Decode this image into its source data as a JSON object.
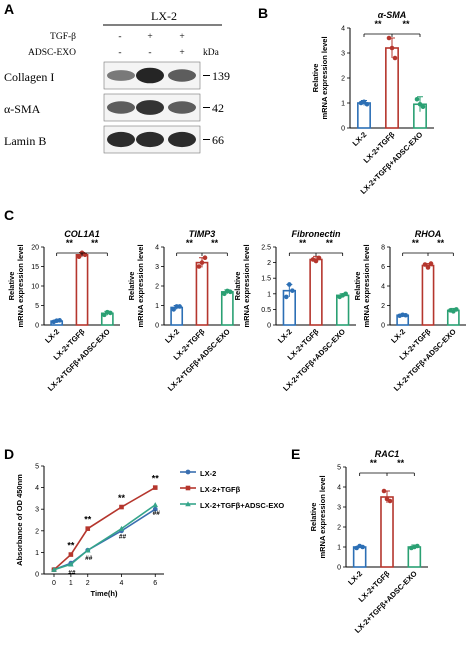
{
  "panel_labels": {
    "a": "A",
    "b": "B",
    "c": "C",
    "d": "D",
    "e": "E"
  },
  "colors": {
    "lx2": "#2c6fb5",
    "tgf": "#b5362d",
    "exo": "#2aa073",
    "d_lx2": "#3a6fb0",
    "d_tgf": "#b5362d",
    "d_exo": "#35a58a"
  },
  "western": {
    "header": "LX-2",
    "rows": [
      {
        "label": "TGF-β",
        "marks": [
          "-",
          "+",
          "+"
        ]
      },
      {
        "label": "ADSC-EXO",
        "marks": [
          "-",
          "-",
          "+"
        ]
      }
    ],
    "unit": "kDa",
    "bands": [
      {
        "name": "Collagen I",
        "kda": "139",
        "intensity": [
          0.35,
          0.95,
          0.55
        ]
      },
      {
        "name": "α-SMA",
        "kda": "42",
        "intensity": [
          0.55,
          0.85,
          0.55
        ]
      },
      {
        "name": "Lamin B",
        "kda": "66",
        "intensity": [
          0.9,
          0.9,
          0.9
        ]
      }
    ]
  },
  "y_axis_label": [
    "Relative",
    "mRNA expression level"
  ],
  "categories": [
    "LX-2",
    "LX-2+TGFβ",
    "LX-2+TGFβ+ADSC-EXO"
  ],
  "significance": "**",
  "chart_data": [
    {
      "type": "bar",
      "panel": "B",
      "title": "α-SMA",
      "categories": [
        "LX-2",
        "LX-2+TGFβ",
        "LX-2+TGFβ+ADSC-EXO"
      ],
      "values": [
        1.0,
        3.2,
        0.95
      ],
      "errors": [
        0.1,
        0.4,
        0.3
      ],
      "points": [
        [
          1.0,
          1.05,
          0.95
        ],
        [
          3.6,
          3.2,
          2.8
        ],
        [
          1.15,
          0.95,
          0.85
        ]
      ],
      "ylim": [
        0,
        4
      ],
      "ticks": [
        0,
        1,
        2,
        3,
        4
      ],
      "ylabel": "Relative mRNA expression level"
    },
    {
      "type": "bar",
      "panel": "C",
      "title": "COL1A1",
      "categories": [
        "LX-2",
        "LX-2+TGFβ",
        "LX-2+TGFβ+ADSC-EXO"
      ],
      "values": [
        1.0,
        18.0,
        3.0
      ],
      "errors": [
        0.3,
        0.6,
        0.5
      ],
      "points": [
        [
          0.8,
          1.1,
          1.2
        ],
        [
          17.5,
          18.5,
          18.0
        ],
        [
          2.6,
          3.3,
          3.1
        ]
      ],
      "ylim": [
        0,
        20
      ],
      "ticks": [
        0,
        5,
        10,
        15,
        20
      ],
      "ylabel": "Relative mRNA expression level"
    },
    {
      "type": "bar",
      "panel": "C",
      "title": "TIMP3",
      "categories": [
        "LX-2",
        "LX-2+TGFβ",
        "LX-2+TGFβ+ADSC-EXO"
      ],
      "values": [
        0.9,
        3.2,
        1.7
      ],
      "errors": [
        0.1,
        0.25,
        0.1
      ],
      "points": [
        [
          0.8,
          0.95,
          0.95
        ],
        [
          3.0,
          3.2,
          3.45
        ],
        [
          1.6,
          1.75,
          1.7
        ]
      ],
      "ylim": [
        0,
        4
      ],
      "ticks": [
        0,
        1,
        2,
        3,
        4
      ],
      "ylabel": "Relative mRNA expression level"
    },
    {
      "type": "bar",
      "panel": "C",
      "title": "Fibronectin",
      "categories": [
        "LX-2",
        "LX-2+TGFβ",
        "LX-2+TGFβ+ADSC-EXO"
      ],
      "values": [
        1.1,
        2.1,
        0.95
      ],
      "errors": [
        0.2,
        0.1,
        0.05
      ],
      "points": [
        [
          0.9,
          1.3,
          1.1
        ],
        [
          2.1,
          2.05,
          2.15
        ],
        [
          0.9,
          0.95,
          1.0
        ]
      ],
      "ylim": [
        0,
        2.5
      ],
      "ticks": [
        0,
        0.5,
        1.0,
        1.5,
        2.0,
        2.5
      ],
      "ylabel": "Relative mRNA expression level"
    },
    {
      "type": "bar",
      "panel": "C",
      "title": "RHOA",
      "categories": [
        "LX-2",
        "LX-2+TGFβ",
        "LX-2+TGFβ+ADSC-EXO"
      ],
      "values": [
        1.0,
        6.1,
        1.5
      ],
      "errors": [
        0.1,
        0.2,
        0.2
      ],
      "points": [
        [
          0.95,
          1.05,
          1.0
        ],
        [
          6.2,
          5.9,
          6.3
        ],
        [
          1.5,
          1.4,
          1.6
        ]
      ],
      "ylim": [
        0,
        8
      ],
      "ticks": [
        0,
        2,
        4,
        6,
        8
      ],
      "ylabel": "Relative mRNA expression level"
    },
    {
      "type": "line",
      "panel": "D",
      "x": [
        0,
        1,
        2,
        4,
        6
      ],
      "xlabel": "Time(h)",
      "ylabel": "Absorbance of OD 450nm",
      "ylim": [
        0,
        5
      ],
      "ticks": [
        0,
        1,
        2,
        3,
        4,
        5
      ],
      "series": [
        {
          "name": "LX-2",
          "values": [
            0.2,
            0.5,
            1.1,
            2.0,
            3.0
          ]
        },
        {
          "name": "LX-2+TGFβ",
          "values": [
            0.2,
            0.9,
            2.1,
            3.1,
            4.0
          ]
        },
        {
          "name": "LX-2+TGFβ+ADSC-EXO",
          "values": [
            0.2,
            0.45,
            1.1,
            2.1,
            3.2
          ]
        }
      ],
      "annotations_top": [
        "**",
        "**",
        "**",
        "**"
      ],
      "annotations_bottom": [
        "##",
        "##",
        "##",
        "##"
      ]
    },
    {
      "type": "bar",
      "panel": "E",
      "title": "RAC1",
      "categories": [
        "LX-2",
        "LX-2+TGFβ",
        "LX-2+TGFβ+ADSC-EXO"
      ],
      "values": [
        1.0,
        3.5,
        1.0
      ],
      "errors": [
        0.05,
        0.3,
        0.1
      ],
      "points": [
        [
          0.95,
          1.05,
          1.0
        ],
        [
          3.8,
          3.4,
          3.3
        ],
        [
          0.95,
          1.0,
          1.05
        ]
      ],
      "ylim": [
        0,
        5
      ],
      "ticks": [
        0,
        1,
        2,
        3,
        4,
        5
      ],
      "ylabel": "Relative mRNA expression level"
    }
  ]
}
